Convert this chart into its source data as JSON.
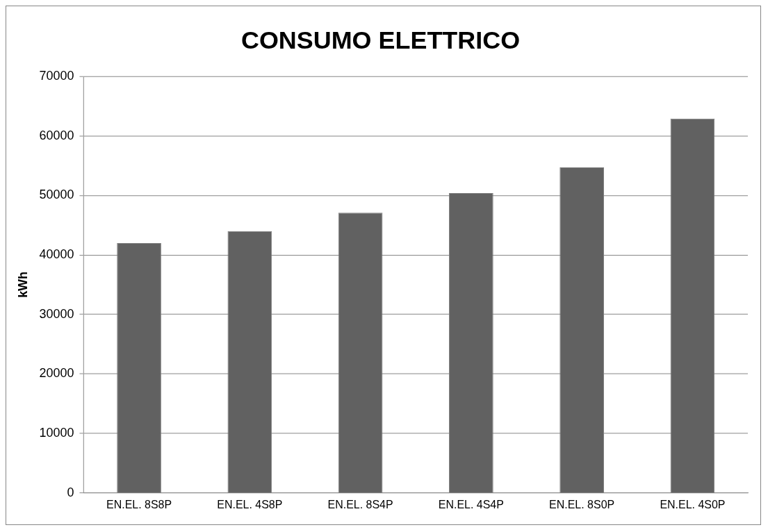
{
  "chart_data": {
    "type": "bar",
    "title": "CONSUMO ELETTRICO",
    "ylabel": "kWh",
    "categories": [
      "EN.EL. 8S8P",
      "EN.EL. 4S8P",
      "EN.EL. 8S4P",
      "EN.EL. 4S4P",
      "EN.EL. 8S0P",
      "EN.EL. 4S0P"
    ],
    "values": [
      42000,
      44000,
      47100,
      50400,
      54700,
      62900
    ],
    "color": "#616161",
    "ylim": [
      0,
      70000
    ],
    "yticks": [
      0,
      10000,
      20000,
      30000,
      40000,
      50000,
      60000,
      70000
    ],
    "grid": "y",
    "legend": false
  }
}
